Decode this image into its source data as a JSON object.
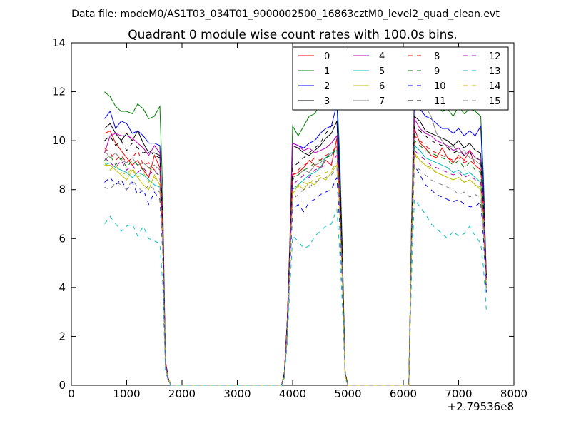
{
  "chart_data": {
    "type": "line",
    "suptitle": "Data file: modeM0/AS1T03_034T01_9000002500_16863cztM0_level2_quad_clean.evt",
    "title": "Quadrant 0 module wise count rates with 100.0s bins.",
    "xlabel": "",
    "ylabel": "",
    "x_offset_label": "+2.79536e8",
    "xlim": [
      0,
      8000
    ],
    "ylim": [
      0,
      14
    ],
    "x_ticks": [
      0,
      1000,
      2000,
      3000,
      4000,
      5000,
      6000,
      7000,
      8000
    ],
    "y_ticks": [
      0,
      2,
      4,
      6,
      8,
      10,
      12,
      14
    ],
    "grid": false,
    "legend_position": "top-right",
    "legend_columns": 4,
    "x": [
      600,
      700,
      800,
      900,
      1000,
      1100,
      1200,
      1300,
      1400,
      1500,
      1600,
      1650,
      1700,
      1750,
      1800,
      3800,
      3850,
      3900,
      3950,
      4000,
      4100,
      4200,
      4300,
      4400,
      4500,
      4600,
      4700,
      4800,
      4850,
      4900,
      4950,
      5000,
      6100,
      6150,
      6200,
      6300,
      6400,
      6500,
      6600,
      6700,
      6800,
      6900,
      7000,
      7100,
      7200,
      7300,
      7400,
      7450,
      7500
    ],
    "series": [
      {
        "name": "0",
        "color": "#ff0000",
        "dash": "solid",
        "values": [
          10.3,
          10.4,
          9.9,
          9.6,
          9.3,
          9.0,
          9.2,
          8.8,
          8.5,
          9.4,
          8.9,
          6.5,
          1.0,
          0.3,
          0,
          0,
          0.5,
          2.5,
          5.5,
          8.6,
          8.7,
          8.9,
          9.2,
          9.0,
          8.9,
          9.2,
          9.0,
          10.1,
          8.0,
          4.5,
          0.5,
          0,
          0,
          6.0,
          10.5,
          9.9,
          9.7,
          9.4,
          9.3,
          9.7,
          9.3,
          9.1,
          9.4,
          9.2,
          9.6,
          9.0,
          8.8,
          7.5,
          4.5
        ]
      },
      {
        "name": "1",
        "color": "#008000",
        "dash": "solid",
        "values": [
          12.0,
          11.8,
          11.4,
          11.2,
          11.2,
          11.1,
          11.5,
          11.3,
          10.9,
          11.0,
          11.4,
          8.0,
          1.0,
          0.3,
          0,
          0,
          0.5,
          2.5,
          5.9,
          10.6,
          10.2,
          10.6,
          11.0,
          11.1,
          11.5,
          11.3,
          11.6,
          11.9,
          9.5,
          5.5,
          0.5,
          0,
          0,
          6.5,
          12.0,
          11.8,
          11.3,
          11.4,
          11.5,
          11.2,
          11.3,
          11.0,
          11.4,
          11.1,
          11.3,
          11.2,
          11.0,
          8.5,
          4.5
        ]
      },
      {
        "name": "2",
        "color": "#0000ff",
        "dash": "solid",
        "values": [
          10.9,
          11.2,
          10.5,
          10.8,
          10.7,
          10.3,
          10.4,
          10.2,
          9.9,
          9.9,
          9.8,
          7.0,
          1.0,
          0.3,
          0,
          0,
          0.5,
          2.5,
          5.6,
          9.9,
          9.8,
          9.7,
          9.9,
          10.0,
          10.3,
          10.5,
          10.6,
          11.5,
          9.0,
          5.0,
          0.5,
          0,
          0,
          6.5,
          11.5,
          11.3,
          11.0,
          10.9,
          10.7,
          10.5,
          10.5,
          10.3,
          10.5,
          10.2,
          10.4,
          10.2,
          10.6,
          8.0,
          4.5
        ]
      },
      {
        "name": "3",
        "color": "#000000",
        "dash": "solid",
        "values": [
          10.5,
          10.7,
          10.3,
          10.0,
          10.3,
          10.0,
          10.4,
          9.9,
          9.5,
          9.5,
          9.4,
          6.8,
          1.0,
          0.3,
          0,
          0,
          0.5,
          2.5,
          5.6,
          9.8,
          9.7,
          9.5,
          9.4,
          9.6,
          9.8,
          10.1,
          10.3,
          10.8,
          8.5,
          5.0,
          0.5,
          0,
          0,
          6.5,
          11.0,
          10.8,
          10.4,
          10.3,
          10.2,
          10.1,
          10.0,
          9.8,
          10.0,
          9.7,
          9.9,
          9.6,
          9.5,
          7.5,
          4.5
        ]
      },
      {
        "name": "4",
        "color": "#bf00bf",
        "dash": "solid",
        "values": [
          9.5,
          10.2,
          10.3,
          10.2,
          10.2,
          10.1,
          9.9,
          9.7,
          9.4,
          9.8,
          9.5,
          6.8,
          1.0,
          0.3,
          0,
          0,
          0.5,
          2.5,
          5.5,
          9.9,
          9.8,
          9.6,
          9.7,
          9.5,
          9.6,
          9.7,
          9.9,
          10.2,
          8.0,
          4.8,
          0.5,
          0,
          0,
          6.5,
          10.9,
          10.5,
          10.3,
          10.2,
          10.0,
          9.9,
          9.8,
          9.6,
          9.7,
          9.4,
          9.6,
          9.3,
          9.2,
          7.5,
          4.5
        ]
      },
      {
        "name": "5",
        "color": "#00bfbf",
        "dash": "solid",
        "values": [
          9.0,
          9.1,
          8.9,
          8.8,
          8.7,
          8.5,
          8.7,
          8.6,
          8.4,
          8.2,
          8.1,
          6.0,
          0.8,
          0.3,
          0,
          0,
          0.4,
          2.2,
          5.0,
          8.0,
          8.2,
          8.4,
          8.6,
          8.7,
          8.9,
          9.3,
          9.5,
          9.6,
          7.5,
          4.3,
          0.4,
          0,
          0,
          5.8,
          9.8,
          9.6,
          9.3,
          9.2,
          9.1,
          9.0,
          8.9,
          8.7,
          8.8,
          8.6,
          8.7,
          8.5,
          8.3,
          6.8,
          4.0
        ]
      },
      {
        "name": "6",
        "color": "#bfbf00",
        "dash": "solid",
        "values": [
          9.0,
          9.0,
          8.8,
          8.6,
          8.4,
          8.8,
          8.5,
          8.2,
          8.0,
          8.6,
          8.2,
          6.0,
          0.8,
          0.3,
          0,
          0,
          0.4,
          2.2,
          5.0,
          7.8,
          8.2,
          8.0,
          8.3,
          8.2,
          8.5,
          8.4,
          8.7,
          9.0,
          7.2,
          4.2,
          0.4,
          0,
          0,
          5.8,
          9.5,
          9.2,
          9.0,
          8.9,
          8.7,
          8.6,
          8.5,
          8.4,
          8.5,
          8.3,
          8.4,
          8.2,
          8.0,
          6.5,
          4.0
        ]
      },
      {
        "name": "7",
        "color": "#808080",
        "dash": "solid",
        "values": [
          9.6,
          9.3,
          9.5,
          9.2,
          9.1,
          9.3,
          9.0,
          9.1,
          8.9,
          9.0,
          8.8,
          6.3,
          0.9,
          0.3,
          0,
          0,
          0.5,
          2.4,
          5.3,
          8.5,
          8.6,
          8.8,
          8.7,
          9.0,
          9.1,
          9.3,
          9.4,
          9.8,
          7.7,
          4.5,
          0.5,
          0,
          0,
          7.0,
          12.4,
          12.0,
          11.4,
          11.0,
          10.3,
          10.0,
          9.7,
          9.8,
          9.5,
          9.6,
          9.3,
          9.2,
          9.0,
          7.2,
          4.3
        ]
      },
      {
        "name": "8",
        "color": "#ff0000",
        "dash": "dashed",
        "values": [
          9.7,
          9.5,
          9.2,
          9.4,
          9.1,
          9.3,
          9.6,
          9.0,
          9.1,
          8.8,
          8.9,
          6.4,
          0.9,
          0.3,
          0,
          0,
          0.5,
          2.4,
          5.3,
          8.6,
          8.8,
          9.0,
          9.1,
          9.3,
          9.2,
          9.4,
          9.5,
          9.8,
          7.8,
          4.5,
          0.5,
          0,
          0,
          6.0,
          10.2,
          10.0,
          9.8,
          9.6,
          9.5,
          9.4,
          9.3,
          9.2,
          9.3,
          9.1,
          9.2,
          9.0,
          8.8,
          7.2,
          4.3
        ]
      },
      {
        "name": "9",
        "color": "#008000",
        "dash": "dashed",
        "values": [
          9.2,
          9.4,
          9.0,
          9.3,
          8.9,
          9.2,
          9.0,
          8.8,
          8.9,
          8.7,
          8.6,
          6.2,
          0.9,
          0.3,
          0,
          0,
          0.5,
          2.3,
          5.2,
          8.4,
          8.6,
          8.8,
          8.9,
          9.1,
          9.2,
          9.3,
          9.4,
          9.7,
          7.6,
          4.4,
          0.5,
          0,
          0,
          6.0,
          10.0,
          9.8,
          9.6,
          9.5,
          9.4,
          9.3,
          9.2,
          9.0,
          9.2,
          8.9,
          9.1,
          8.8,
          8.7,
          7.0,
          4.2
        ]
      },
      {
        "name": "10",
        "color": "#0000ff",
        "dash": "dashed",
        "values": [
          8.3,
          8.5,
          8.2,
          8.4,
          8.0,
          8.3,
          7.8,
          8.0,
          7.4,
          7.9,
          7.6,
          5.5,
          0.8,
          0.2,
          0,
          0,
          0.4,
          2.0,
          4.6,
          7.2,
          7.4,
          7.1,
          7.5,
          7.6,
          7.8,
          7.9,
          8.0,
          8.5,
          6.6,
          3.9,
          0.4,
          0,
          0,
          5.5,
          9.0,
          8.6,
          8.2,
          8.0,
          7.8,
          7.7,
          7.6,
          7.5,
          7.6,
          7.4,
          7.3,
          7.3,
          7.5,
          6.0,
          3.8
        ]
      },
      {
        "name": "11",
        "color": "#000000",
        "dash": "dashed",
        "values": [
          10.0,
          10.2,
          9.8,
          10.0,
          9.6,
          9.9,
          9.7,
          9.5,
          9.6,
          9.4,
          9.3,
          6.8,
          1.0,
          0.3,
          0,
          0,
          0.5,
          2.5,
          5.5,
          8.9,
          9.1,
          9.3,
          9.5,
          9.7,
          9.9,
          10.3,
          10.6,
          10.8,
          8.5,
          5.0,
          0.5,
          0,
          0,
          6.3,
          10.6,
          10.4,
          10.2,
          10.0,
          9.9,
          9.8,
          9.7,
          9.5,
          9.6,
          9.4,
          9.5,
          9.3,
          9.2,
          7.4,
          4.4
        ]
      },
      {
        "name": "12",
        "color": "#bf00bf",
        "dash": "dashed",
        "values": [
          9.3,
          9.1,
          8.9,
          9.2,
          8.8,
          9.0,
          8.7,
          8.9,
          8.6,
          8.8,
          8.5,
          6.1,
          0.9,
          0.3,
          0,
          0,
          0.4,
          2.3,
          5.1,
          8.2,
          8.4,
          8.6,
          8.5,
          8.8,
          8.9,
          9.0,
          9.1,
          9.4,
          7.4,
          4.3,
          0.4,
          0,
          0,
          5.8,
          9.6,
          9.4,
          9.2,
          9.0,
          8.9,
          8.8,
          8.7,
          8.6,
          8.7,
          8.5,
          8.6,
          8.4,
          8.3,
          6.7,
          4.1
        ]
      },
      {
        "name": "13",
        "color": "#00bfbf",
        "dash": "dashed",
        "values": [
          6.6,
          6.9,
          6.6,
          6.3,
          6.5,
          6.6,
          6.1,
          6.5,
          6.0,
          5.9,
          5.8,
          4.2,
          0.6,
          0.2,
          0,
          0,
          0.3,
          1.7,
          3.9,
          6.1,
          5.9,
          5.6,
          5.7,
          6.1,
          6.3,
          6.5,
          6.6,
          7.2,
          5.5,
          3.2,
          0.3,
          0,
          0,
          4.5,
          7.6,
          7.3,
          7.0,
          6.6,
          6.4,
          6.2,
          6.0,
          6.3,
          6.1,
          6.2,
          6.5,
          6.1,
          5.8,
          4.8,
          3.1
        ]
      },
      {
        "name": "14",
        "color": "#bfbf00",
        "dash": "dashed",
        "values": [
          9.1,
          8.8,
          9.0,
          8.7,
          8.6,
          8.9,
          8.5,
          8.7,
          8.3,
          8.5,
          8.2,
          6.0,
          0.8,
          0.3,
          0,
          0,
          0.4,
          2.2,
          5.0,
          7.9,
          8.1,
          8.3,
          8.2,
          8.5,
          8.6,
          8.7,
          8.8,
          9.1,
          7.2,
          4.2,
          0.4,
          0,
          0,
          5.7,
          9.4,
          9.2,
          9.0,
          8.8,
          8.7,
          8.6,
          8.5,
          8.4,
          8.5,
          8.3,
          8.4,
          8.2,
          8.1,
          6.6,
          4.0
        ]
      },
      {
        "name": "15",
        "color": "#808080",
        "dash": "dashed",
        "values": [
          8.1,
          8.0,
          8.3,
          8.2,
          8.0,
          8.4,
          8.1,
          7.9,
          8.2,
          8.0,
          7.9,
          5.7,
          0.8,
          0.2,
          0,
          0,
          0.4,
          2.1,
          4.8,
          7.6,
          7.8,
          8.0,
          8.1,
          8.3,
          8.4,
          8.5,
          8.6,
          8.9,
          7.0,
          4.1,
          0.4,
          0,
          0,
          5.5,
          9.0,
          8.8,
          8.6,
          8.4,
          8.3,
          8.2,
          8.1,
          8.0,
          7.8,
          7.9,
          7.7,
          7.8,
          7.7,
          6.3,
          3.9
        ]
      }
    ]
  }
}
